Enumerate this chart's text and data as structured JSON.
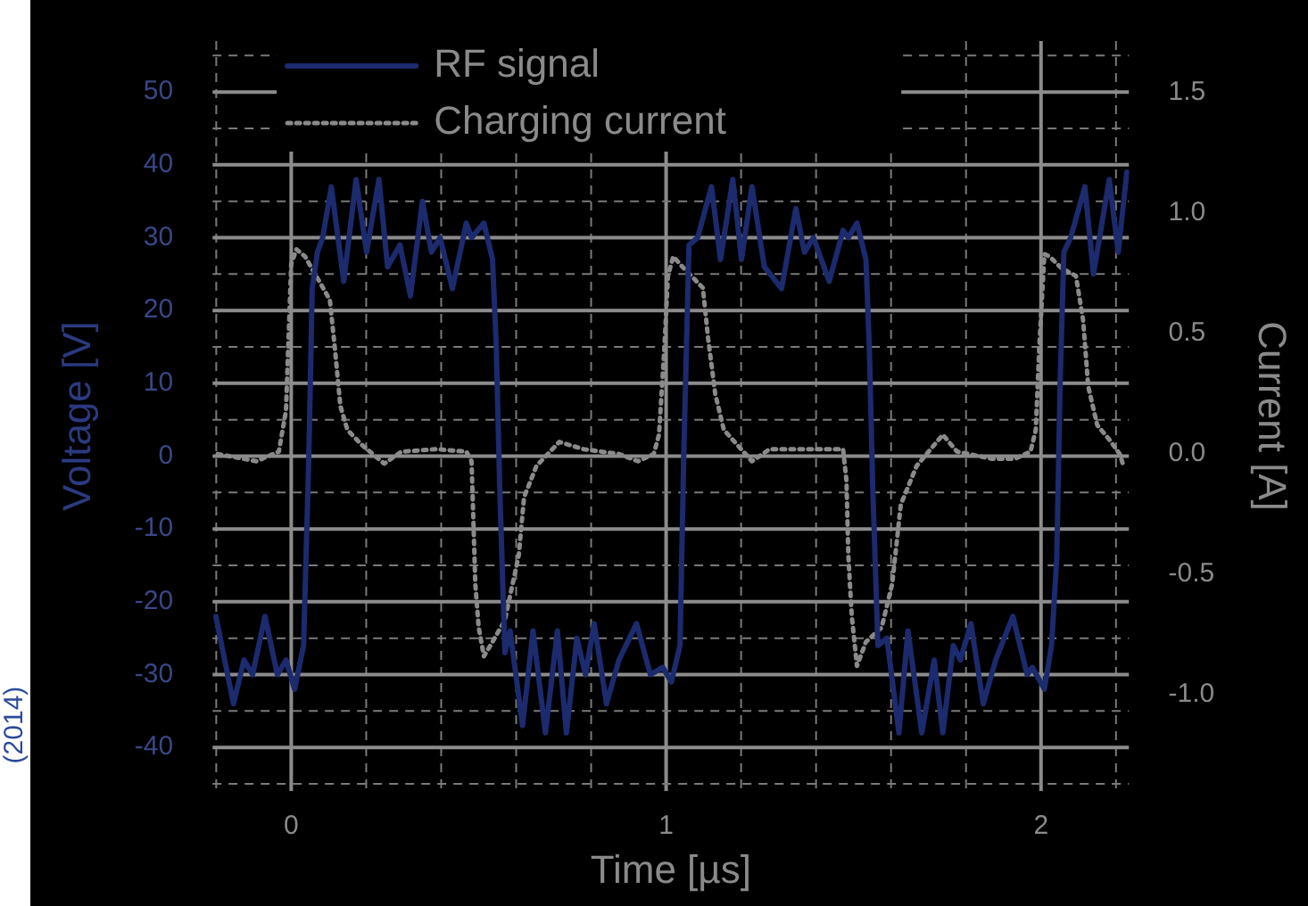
{
  "chart_data": {
    "type": "line",
    "xlabel": "Time [µs]",
    "ylabel": "Voltage [V]",
    "y2label": "Current [A]",
    "xlim": [
      -0.21,
      2.235
    ],
    "xticks": [
      {
        "value": -0.2,
        "label": null
      },
      0,
      {
        "value": 0.2,
        "label": null
      },
      {
        "value": 0.4,
        "label": null
      },
      {
        "value": 0.6,
        "label": null
      },
      {
        "value": 0.8,
        "label": null
      },
      1,
      {
        "value": 1.2,
        "label": null
      },
      {
        "value": 1.4,
        "label": null
      },
      {
        "value": 1.6,
        "label": null
      },
      {
        "value": 1.8,
        "label": null
      },
      2,
      {
        "value": 2.2,
        "label": null
      }
    ],
    "ylim": [
      -46,
      57
    ],
    "yticks": [
      {
        "value": -45,
        "label": null
      },
      -40,
      {
        "value": -35,
        "label": null
      },
      -30,
      {
        "value": -25,
        "label": null
      },
      -20,
      {
        "value": -15,
        "label": null
      },
      -10,
      {
        "value": -5,
        "label": null
      },
      0,
      {
        "value": 5,
        "label": null
      },
      10,
      {
        "value": 15,
        "label": null
      },
      20,
      {
        "value": 25,
        "label": null
      },
      30,
      {
        "value": 35,
        "label": null
      },
      40,
      {
        "value": 45,
        "label": null
      },
      50,
      {
        "value": 55,
        "label": null
      }
    ],
    "y2lim": [
      -1.4,
      1.715
    ],
    "y2ticks": [
      {
        "value": -1,
        "label": "-1.0"
      },
      {
        "value": -0.5,
        "label": "-0.5"
      },
      {
        "value": 0,
        "label": "0.0"
      },
      {
        "value": 0.5,
        "label": "0.5"
      },
      {
        "value": 1,
        "label": "1.0"
      },
      {
        "value": 1.5,
        "label": "1.5"
      }
    ],
    "grid": true,
    "legend": "top",
    "annotations": [
      "(2014)"
    ],
    "series": [
      {
        "name": "RF signal",
        "color": "#1c2a6e",
        "line_style": "solid",
        "x": [
          -0.201,
          -0.154,
          -0.126,
          -0.103,
          -0.07,
          -0.037,
          -0.014,
          0.009,
          0.033,
          0.047,
          0.056,
          0.07,
          0.084,
          0.107,
          0.14,
          0.173,
          0.201,
          0.234,
          0.257,
          0.29,
          0.318,
          0.35,
          0.374,
          0.397,
          0.43,
          0.467,
          0.481,
          0.514,
          0.537,
          0.547,
          0.556,
          0.57,
          0.584,
          0.617,
          0.645,
          0.678,
          0.71,
          0.734,
          0.762,
          0.785,
          0.808,
          0.841,
          0.874,
          0.921,
          0.958,
          0.991,
          1.014,
          1.037,
          1.047,
          1.061,
          1.084,
          1.121,
          1.145,
          1.178,
          1.201,
          1.229,
          1.262,
          1.308,
          1.346,
          1.369,
          1.393,
          1.435,
          1.472,
          1.486,
          1.509,
          1.533,
          1.542,
          1.551,
          1.565,
          1.589,
          1.621,
          1.645,
          1.682,
          1.715,
          1.738,
          1.766,
          1.785,
          1.813,
          1.846,
          1.879,
          1.925,
          1.963,
          1.977,
          2.009,
          2.028,
          2.042,
          2.051,
          2.061,
          2.079,
          2.117,
          2.14,
          2.182,
          2.206,
          2.229
        ],
        "values": [
          -22,
          -34,
          -28,
          -30,
          -22,
          -30,
          -28,
          -32,
          -26,
          0,
          23,
          28,
          30,
          37,
          24,
          38,
          28,
          38,
          26,
          29,
          22,
          35,
          28,
          30,
          23,
          32,
          30,
          32,
          27,
          15,
          -4,
          -27,
          -24,
          -37,
          -24,
          -38,
          -24,
          -38,
          -25,
          -30,
          -23,
          -34,
          -28,
          -23,
          -30,
          -29,
          -31,
          -26,
          0,
          29,
          30,
          37,
          27,
          38,
          27,
          37,
          26,
          23,
          34,
          28,
          30,
          24,
          31,
          30,
          32,
          27,
          15,
          -4,
          -26,
          -25,
          -38,
          -24,
          -38,
          -28,
          -38,
          -26,
          -28,
          -23,
          -34,
          -28,
          -22,
          -30,
          -29,
          -32,
          -26,
          -14,
          10,
          28,
          30,
          37,
          25,
          38,
          28,
          39
        ]
      },
      {
        "name": "Charging current",
        "color": "#8a8a8a",
        "line_style": "dotted",
        "axis": "y2",
        "x": [
          -0.196,
          -0.093,
          -0.033,
          -0.014,
          0,
          0.014,
          0.037,
          0.103,
          0.117,
          0.131,
          0.15,
          0.187,
          0.248,
          0.294,
          0.388,
          0.467,
          0.481,
          0.486,
          0.491,
          0.5,
          0.514,
          0.537,
          0.57,
          0.607,
          0.621,
          0.654,
          0.715,
          0.78,
          0.874,
          0.925,
          0.967,
          0.981,
          0.995,
          1.005,
          1.019,
          1.042,
          1.098,
          1.112,
          1.131,
          1.154,
          1.229,
          1.276,
          1.402,
          1.472,
          1.481,
          1.486,
          1.495,
          1.509,
          1.533,
          1.575,
          1.603,
          1.626,
          1.668,
          1.738,
          1.776,
          1.869,
          1.93,
          1.972,
          1.986,
          1.995,
          2.009,
          2.023,
          2.056,
          2.093,
          2.112,
          2.126,
          2.15,
          2.182,
          2.21,
          2.22
        ],
        "values": [
          0,
          -0.03,
          0.01,
          0.18,
          0.79,
          0.85,
          0.82,
          0.64,
          0.43,
          0.2,
          0.1,
          0.04,
          -0.04,
          0.01,
          0.02,
          0.01,
          -0.03,
          -0.28,
          -0.54,
          -0.72,
          -0.84,
          -0.78,
          -0.69,
          -0.42,
          -0.18,
          -0.05,
          0.05,
          0.02,
          0,
          -0.03,
          0,
          0.08,
          0.43,
          0.74,
          0.82,
          0.78,
          0.69,
          0.48,
          0.25,
          0.1,
          -0.03,
          0.02,
          0.02,
          0.02,
          -0.11,
          -0.42,
          -0.67,
          -0.88,
          -0.78,
          -0.72,
          -0.54,
          -0.21,
          -0.05,
          0.08,
          0.01,
          -0.02,
          -0.02,
          0.01,
          0.1,
          0.43,
          0.83,
          0.82,
          0.77,
          0.74,
          0.56,
          0.28,
          0.12,
          0.06,
          0,
          -0.05
        ]
      }
    ]
  }
}
